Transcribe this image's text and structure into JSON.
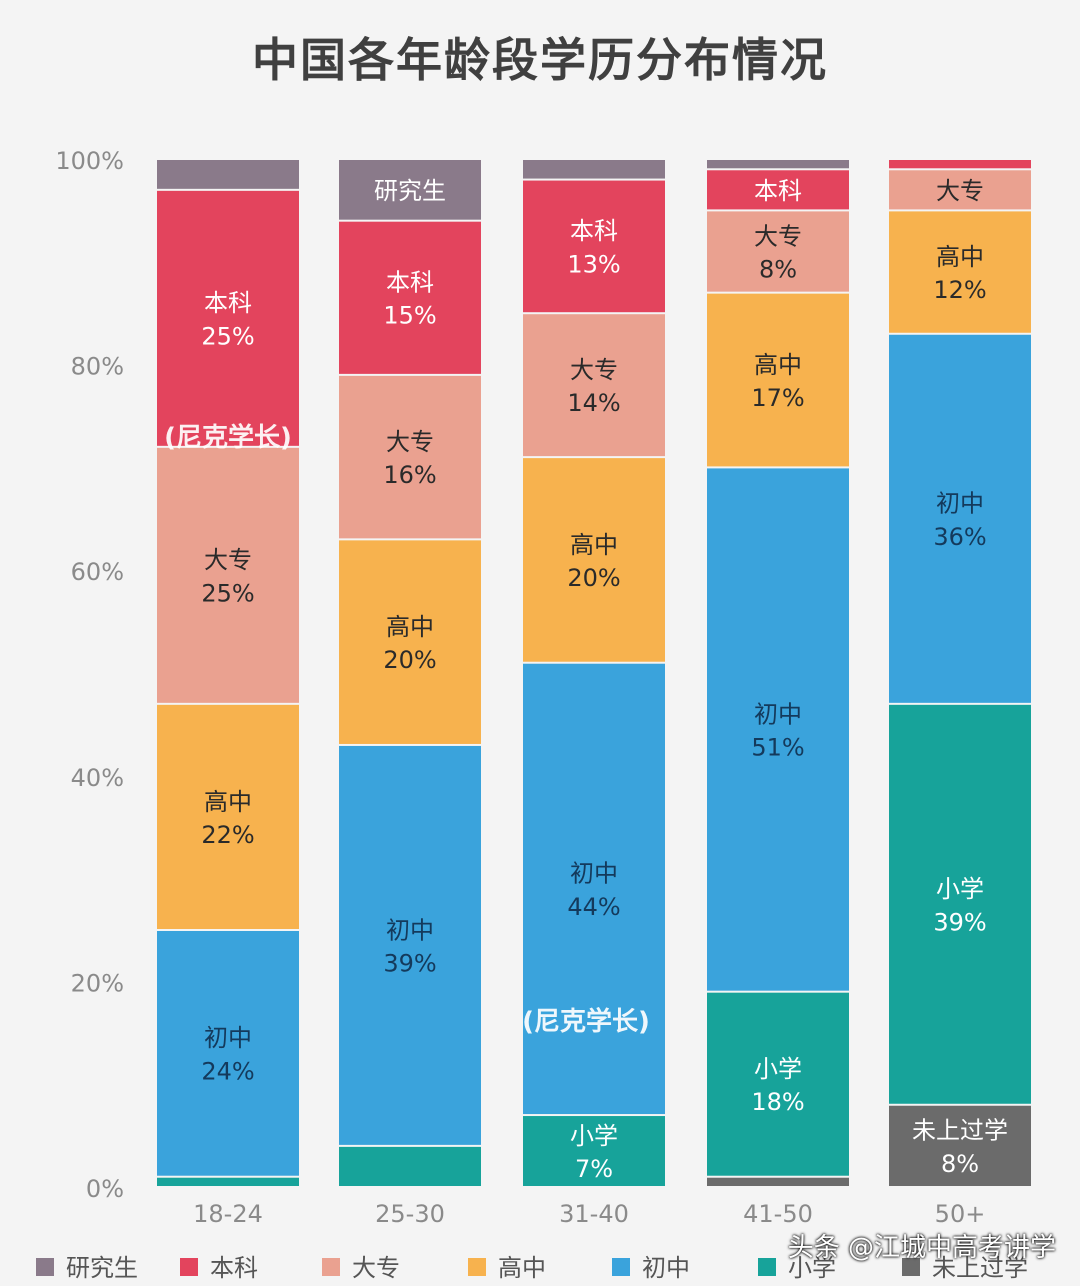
{
  "chart_data": {
    "type": "bar",
    "stacked": true,
    "title": "中国各年龄段学历分布情况",
    "categories": [
      "18-24",
      "25-30",
      "31-40",
      "41-50",
      "50+"
    ],
    "ylim": [
      0,
      100
    ],
    "yticks": [
      "0%",
      "20%",
      "40%",
      "60%",
      "80%",
      "100%"
    ],
    "ytick_values": [
      0,
      20,
      40,
      60,
      80,
      100
    ],
    "series": [
      {
        "name": "未上过学",
        "color": "#6b6b6b",
        "values": [
          0,
          0,
          0,
          1,
          8
        ],
        "labels": [
          "",
          "",
          "",
          "",
          "未上过学\n8%"
        ]
      },
      {
        "name": "小学",
        "color": "#17a39a",
        "values": [
          1,
          4,
          7,
          18,
          39
        ],
        "labels": [
          "",
          "",
          "小学\n7%",
          "小学\n18%",
          "小学\n39%"
        ]
      },
      {
        "name": "初中",
        "color": "#3aa3dc",
        "values": [
          24,
          39,
          44,
          51,
          36
        ],
        "labels": [
          "初中\n24%",
          "初中\n39%",
          "初中\n44%",
          "初中\n51%",
          "初中\n36%"
        ]
      },
      {
        "name": "高中",
        "color": "#f7b24e",
        "values": [
          22,
          20,
          20,
          17,
          12
        ],
        "labels": [
          "高中\n22%",
          "高中\n20%",
          "高中\n20%",
          "高中\n17%",
          "高中\n12%"
        ]
      },
      {
        "name": "大专",
        "color": "#eaa190",
        "values": [
          25,
          16,
          14,
          8,
          4
        ],
        "labels": [
          "大专\n25%",
          "大专\n16%",
          "大专\n14%",
          "大专\n8%",
          "大专"
        ]
      },
      {
        "name": "本科",
        "color": "#e3445d",
        "values": [
          25,
          15,
          13,
          4,
          1
        ],
        "labels": [
          "本科\n25%",
          "本科\n15%",
          "本科\n13%",
          "本科",
          ""
        ]
      },
      {
        "name": "研究生",
        "color": "#8a7a8a",
        "values": [
          3,
          6,
          2,
          1,
          0
        ],
        "labels": [
          "",
          "研究生",
          "",
          "",
          ""
        ]
      }
    ],
    "legend": {
      "position": "bottom",
      "order": [
        "研究生",
        "本科",
        "大专",
        "高中",
        "初中",
        "小学",
        "未上过学"
      ]
    },
    "grid": false
  },
  "watermark": {
    "inline_text": "尼克学长",
    "bottom_text": "头条 @江城中高考讲学"
  }
}
